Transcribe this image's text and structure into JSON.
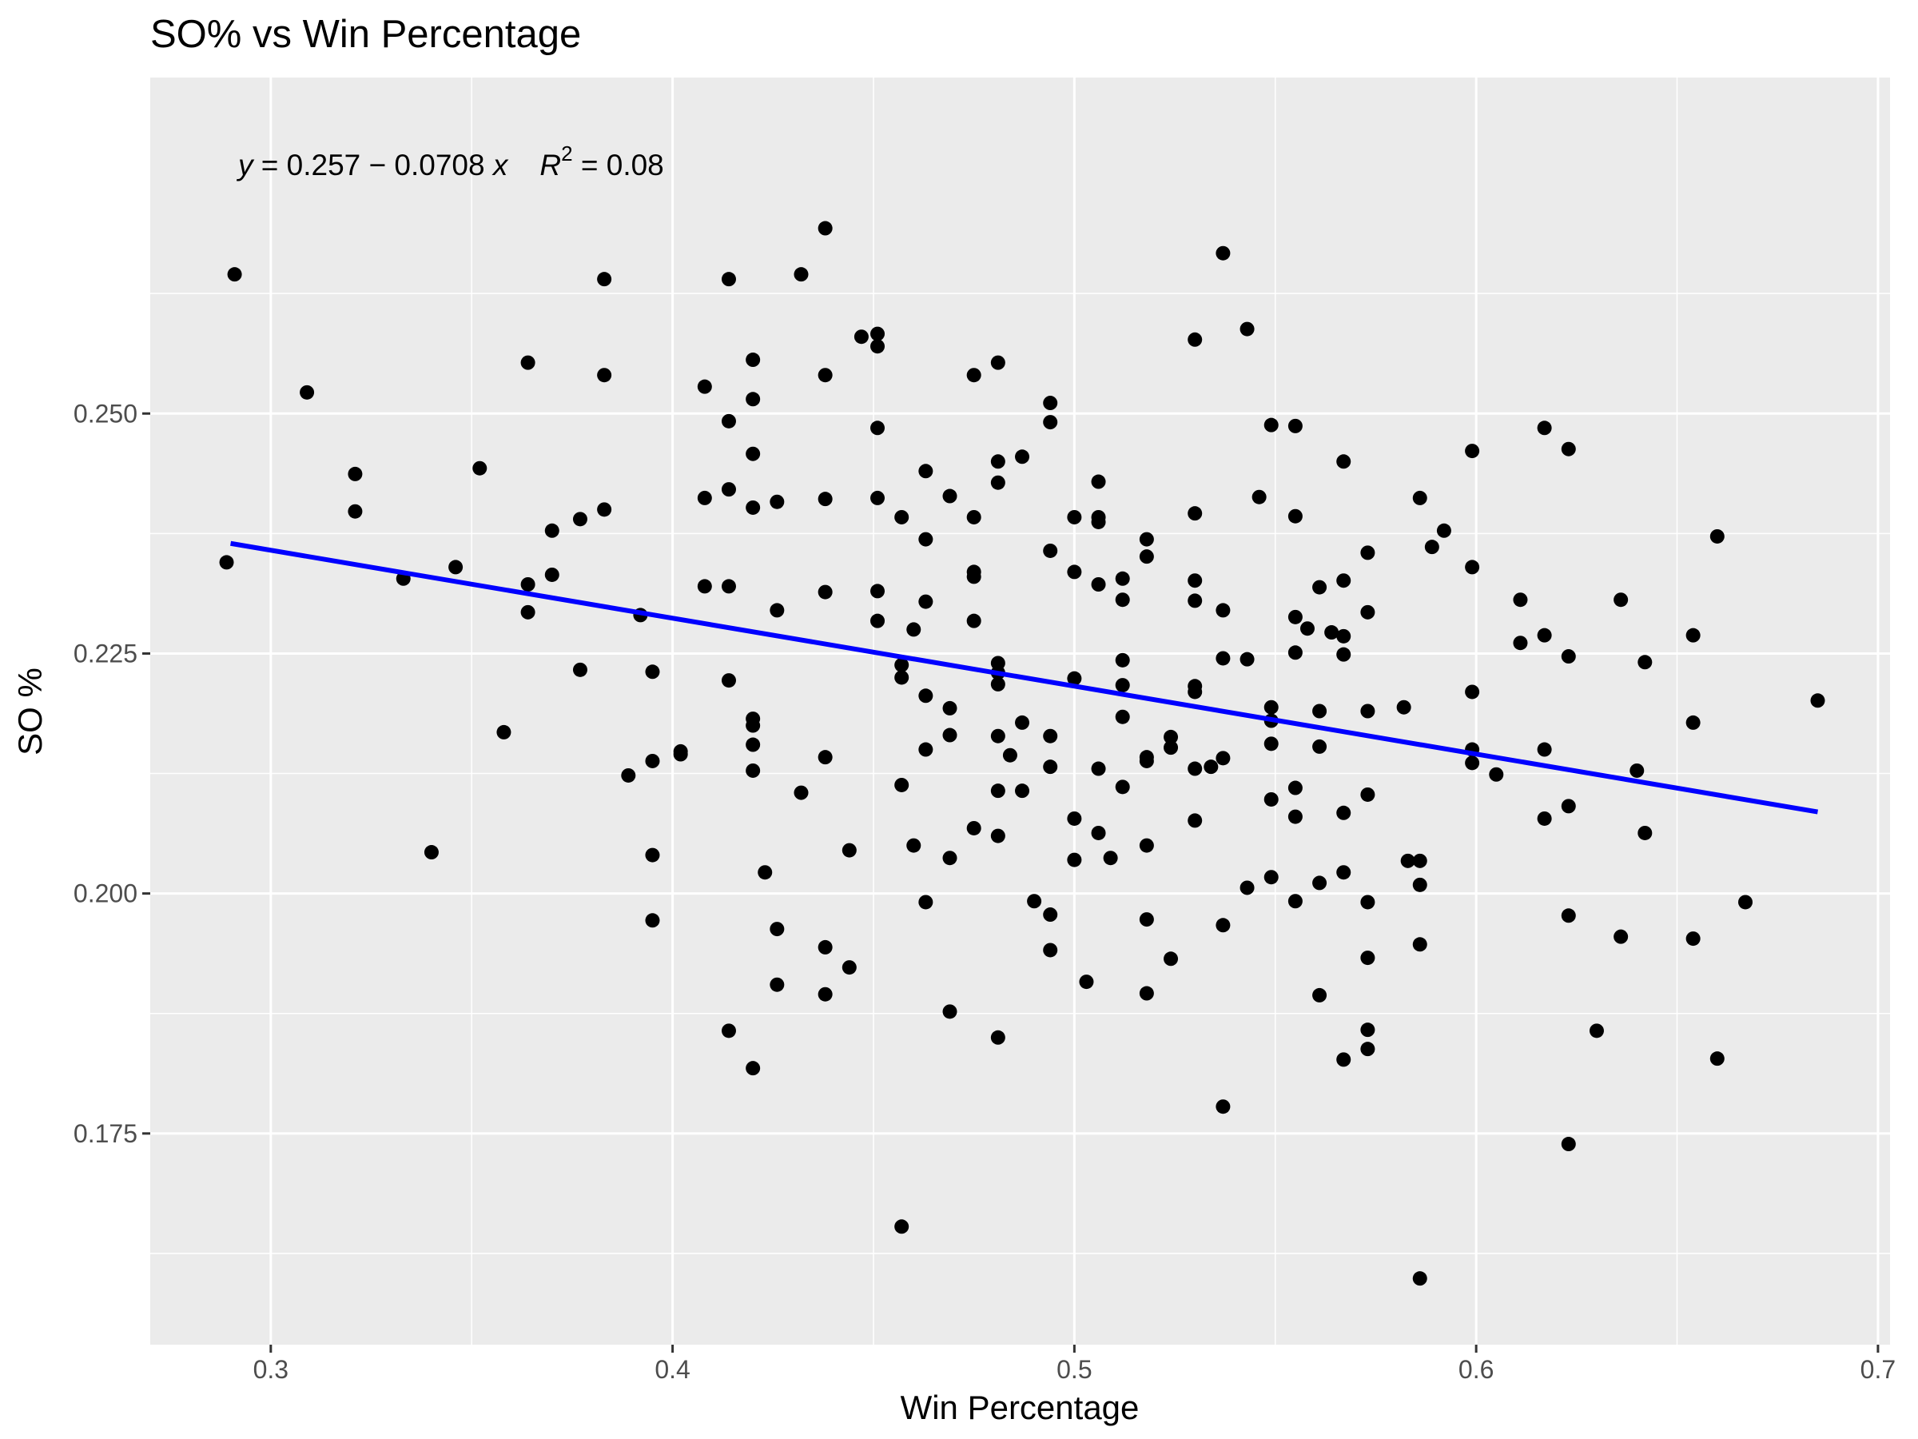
{
  "chart_data": {
    "type": "scatter",
    "title": "SO% vs Win Percentage",
    "xlabel": "Win Percentage",
    "ylabel": "SO %",
    "xlim": [
      0.27,
      0.703
    ],
    "ylim": [
      0.153,
      0.285
    ],
    "x_ticks": [
      0.3,
      0.4,
      0.5,
      0.6,
      0.7
    ],
    "x_tick_labels": [
      "0.3",
      "0.4",
      "0.5",
      "0.6",
      "0.7"
    ],
    "y_ticks": [
      0.175,
      0.2,
      0.225,
      0.25
    ],
    "y_tick_labels": [
      "0.175",
      "0.200",
      "0.225",
      "0.250"
    ],
    "grid": true,
    "annotation": {
      "y_var": "y",
      "equation": " = 0.257 − 0.0708 ",
      "x_var": "x",
      "r_label": "R",
      "r_exp": "2",
      "r_value": " = 0.08"
    },
    "fit_line": {
      "color": "#0000ff",
      "intercept": 0.257,
      "slope": -0.0708,
      "x_range": [
        0.29,
        0.685
      ]
    },
    "point_color": "#000000",
    "points": [
      [
        0.289,
        0.2345
      ],
      [
        0.291,
        0.2645
      ],
      [
        0.309,
        0.2522
      ],
      [
        0.321,
        0.2437
      ],
      [
        0.321,
        0.2398
      ],
      [
        0.333,
        0.2328
      ],
      [
        0.34,
        0.2043
      ],
      [
        0.346,
        0.234
      ],
      [
        0.352,
        0.2443
      ],
      [
        0.358,
        0.2168
      ],
      [
        0.364,
        0.2553
      ],
      [
        0.364,
        0.2322
      ],
      [
        0.364,
        0.2293
      ],
      [
        0.37,
        0.2378
      ],
      [
        0.37,
        0.2332
      ],
      [
        0.377,
        0.239
      ],
      [
        0.377,
        0.2233
      ],
      [
        0.383,
        0.264
      ],
      [
        0.383,
        0.254
      ],
      [
        0.383,
        0.24
      ],
      [
        0.389,
        0.2123
      ],
      [
        0.392,
        0.229
      ],
      [
        0.395,
        0.2231
      ],
      [
        0.395,
        0.2138
      ],
      [
        0.395,
        0.204
      ],
      [
        0.395,
        0.1972
      ],
      [
        0.402,
        0.2145
      ],
      [
        0.402,
        0.2148
      ],
      [
        0.408,
        0.2528
      ],
      [
        0.408,
        0.2412
      ],
      [
        0.408,
        0.232
      ],
      [
        0.414,
        0.264
      ],
      [
        0.414,
        0.2492
      ],
      [
        0.414,
        0.2421
      ],
      [
        0.414,
        0.232
      ],
      [
        0.414,
        0.2222
      ],
      [
        0.414,
        0.1857
      ],
      [
        0.42,
        0.2556
      ],
      [
        0.42,
        0.2515
      ],
      [
        0.42,
        0.2458
      ],
      [
        0.42,
        0.2402
      ],
      [
        0.42,
        0.2182
      ],
      [
        0.42,
        0.2175
      ],
      [
        0.42,
        0.2155
      ],
      [
        0.42,
        0.2128
      ],
      [
        0.42,
        0.1818
      ],
      [
        0.423,
        0.2022
      ],
      [
        0.426,
        0.2408
      ],
      [
        0.426,
        0.2295
      ],
      [
        0.426,
        0.1963
      ],
      [
        0.426,
        0.1905
      ],
      [
        0.432,
        0.2645
      ],
      [
        0.432,
        0.2105
      ],
      [
        0.438,
        0.2693
      ],
      [
        0.438,
        0.254
      ],
      [
        0.438,
        0.2411
      ],
      [
        0.438,
        0.2314
      ],
      [
        0.438,
        0.2142
      ],
      [
        0.438,
        0.1944
      ],
      [
        0.438,
        0.1895
      ],
      [
        0.444,
        0.2045
      ],
      [
        0.444,
        0.1923
      ],
      [
        0.447,
        0.258
      ],
      [
        0.451,
        0.2583
      ],
      [
        0.451,
        0.257
      ],
      [
        0.451,
        0.2485
      ],
      [
        0.451,
        0.2412
      ],
      [
        0.451,
        0.2315
      ],
      [
        0.451,
        0.2284
      ],
      [
        0.457,
        0.2392
      ],
      [
        0.457,
        0.2238
      ],
      [
        0.457,
        0.2225
      ],
      [
        0.457,
        0.2113
      ],
      [
        0.457,
        0.1653
      ],
      [
        0.46,
        0.2275
      ],
      [
        0.46,
        0.205
      ],
      [
        0.463,
        0.244
      ],
      [
        0.463,
        0.2369
      ],
      [
        0.463,
        0.2304
      ],
      [
        0.463,
        0.2206
      ],
      [
        0.463,
        0.215
      ],
      [
        0.463,
        0.1991
      ],
      [
        0.469,
        0.2414
      ],
      [
        0.469,
        0.2193
      ],
      [
        0.469,
        0.2165
      ],
      [
        0.469,
        0.2037
      ],
      [
        0.469,
        0.1877
      ],
      [
        0.475,
        0.254
      ],
      [
        0.475,
        0.2392
      ],
      [
        0.475,
        0.2335
      ],
      [
        0.475,
        0.233
      ],
      [
        0.475,
        0.2284
      ],
      [
        0.475,
        0.2068
      ],
      [
        0.481,
        0.2553
      ],
      [
        0.481,
        0.245
      ],
      [
        0.481,
        0.2428
      ],
      [
        0.481,
        0.224
      ],
      [
        0.481,
        0.223
      ],
      [
        0.481,
        0.2218
      ],
      [
        0.481,
        0.2164
      ],
      [
        0.481,
        0.2107
      ],
      [
        0.481,
        0.206
      ],
      [
        0.481,
        0.185
      ],
      [
        0.484,
        0.2144
      ],
      [
        0.487,
        0.2455
      ],
      [
        0.487,
        0.2178
      ],
      [
        0.487,
        0.2107
      ],
      [
        0.49,
        0.1992
      ],
      [
        0.494,
        0.2511
      ],
      [
        0.494,
        0.2491
      ],
      [
        0.494,
        0.2357
      ],
      [
        0.494,
        0.2164
      ],
      [
        0.494,
        0.2132
      ],
      [
        0.494,
        0.1978
      ],
      [
        0.494,
        0.1941
      ],
      [
        0.5,
        0.2392
      ],
      [
        0.5,
        0.2335
      ],
      [
        0.5,
        0.2224
      ],
      [
        0.5,
        0.2078
      ],
      [
        0.5,
        0.2035
      ],
      [
        0.503,
        0.1908
      ],
      [
        0.506,
        0.2429
      ],
      [
        0.506,
        0.2392
      ],
      [
        0.506,
        0.2387
      ],
      [
        0.506,
        0.2322
      ],
      [
        0.506,
        0.213
      ],
      [
        0.506,
        0.2063
      ],
      [
        0.509,
        0.2037
      ],
      [
        0.512,
        0.2328
      ],
      [
        0.512,
        0.2306
      ],
      [
        0.512,
        0.2243
      ],
      [
        0.512,
        0.2217
      ],
      [
        0.512,
        0.2184
      ],
      [
        0.512,
        0.2111
      ],
      [
        0.518,
        0.2369
      ],
      [
        0.518,
        0.2351
      ],
      [
        0.518,
        0.2142
      ],
      [
        0.518,
        0.2138
      ],
      [
        0.518,
        0.205
      ],
      [
        0.518,
        0.1973
      ],
      [
        0.518,
        0.1896
      ],
      [
        0.524,
        0.2163
      ],
      [
        0.524,
        0.2152
      ],
      [
        0.524,
        0.1932
      ],
      [
        0.53,
        0.2577
      ],
      [
        0.53,
        0.2396
      ],
      [
        0.53,
        0.2326
      ],
      [
        0.53,
        0.2305
      ],
      [
        0.53,
        0.2216
      ],
      [
        0.53,
        0.221
      ],
      [
        0.53,
        0.213
      ],
      [
        0.53,
        0.2076
      ],
      [
        0.534,
        0.2132
      ],
      [
        0.537,
        0.2667
      ],
      [
        0.537,
        0.2295
      ],
      [
        0.537,
        0.2245
      ],
      [
        0.537,
        0.2141
      ],
      [
        0.537,
        0.1967
      ],
      [
        0.537,
        0.1778
      ],
      [
        0.543,
        0.2588
      ],
      [
        0.543,
        0.2244
      ],
      [
        0.543,
        0.2006
      ],
      [
        0.546,
        0.2413
      ],
      [
        0.549,
        0.2488
      ],
      [
        0.549,
        0.2194
      ],
      [
        0.549,
        0.218
      ],
      [
        0.549,
        0.2156
      ],
      [
        0.549,
        0.2098
      ],
      [
        0.549,
        0.2017
      ],
      [
        0.555,
        0.2487
      ],
      [
        0.555,
        0.2393
      ],
      [
        0.555,
        0.2288
      ],
      [
        0.555,
        0.2251
      ],
      [
        0.555,
        0.211
      ],
      [
        0.555,
        0.208
      ],
      [
        0.555,
        0.1992
      ],
      [
        0.558,
        0.2276
      ],
      [
        0.561,
        0.2319
      ],
      [
        0.561,
        0.219
      ],
      [
        0.561,
        0.2153
      ],
      [
        0.561,
        0.2011
      ],
      [
        0.561,
        0.1894
      ],
      [
        0.564,
        0.2272
      ],
      [
        0.567,
        0.245
      ],
      [
        0.567,
        0.2326
      ],
      [
        0.567,
        0.2268
      ],
      [
        0.567,
        0.2249
      ],
      [
        0.567,
        0.2084
      ],
      [
        0.567,
        0.2022
      ],
      [
        0.567,
        0.1827
      ],
      [
        0.573,
        0.2355
      ],
      [
        0.573,
        0.2293
      ],
      [
        0.573,
        0.219
      ],
      [
        0.573,
        0.2103
      ],
      [
        0.573,
        0.1991
      ],
      [
        0.573,
        0.1933
      ],
      [
        0.573,
        0.1858
      ],
      [
        0.573,
        0.1838
      ],
      [
        0.582,
        0.2194
      ],
      [
        0.583,
        0.2034
      ],
      [
        0.586,
        0.2412
      ],
      [
        0.586,
        0.2034
      ],
      [
        0.586,
        0.2009
      ],
      [
        0.586,
        0.1947
      ],
      [
        0.586,
        0.1599
      ],
      [
        0.589,
        0.2361
      ],
      [
        0.592,
        0.2378
      ],
      [
        0.599,
        0.2461
      ],
      [
        0.599,
        0.234
      ],
      [
        0.599,
        0.221
      ],
      [
        0.599,
        0.215
      ],
      [
        0.599,
        0.2136
      ],
      [
        0.605,
        0.2124
      ],
      [
        0.611,
        0.2306
      ],
      [
        0.611,
        0.2261
      ],
      [
        0.617,
        0.2485
      ],
      [
        0.617,
        0.2269
      ],
      [
        0.617,
        0.215
      ],
      [
        0.617,
        0.2078
      ],
      [
        0.623,
        0.2463
      ],
      [
        0.623,
        0.2247
      ],
      [
        0.623,
        0.2091
      ],
      [
        0.623,
        0.1977
      ],
      [
        0.623,
        0.1739
      ],
      [
        0.63,
        0.1857
      ],
      [
        0.636,
        0.2306
      ],
      [
        0.636,
        0.1955
      ],
      [
        0.642,
        0.2241
      ],
      [
        0.642,
        0.2063
      ],
      [
        0.64,
        0.2128
      ],
      [
        0.654,
        0.2269
      ],
      [
        0.654,
        0.2178
      ],
      [
        0.654,
        0.1953
      ],
      [
        0.66,
        0.2372
      ],
      [
        0.66,
        0.1828
      ],
      [
        0.667,
        0.1991
      ],
      [
        0.685,
        0.2201
      ]
    ]
  }
}
